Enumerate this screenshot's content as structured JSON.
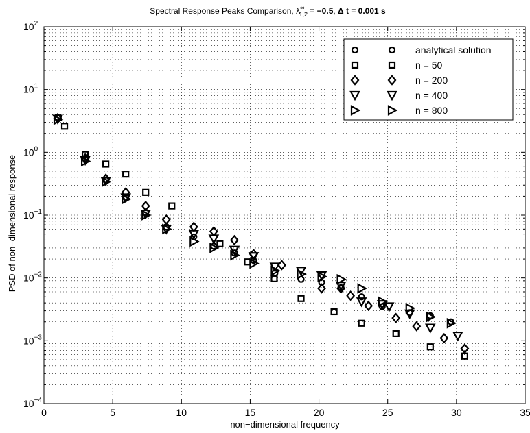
{
  "chart_data": {
    "type": "scatter",
    "title_parts": {
      "prefix": "Spectral Response Peaks Comparison, ",
      "lambda": "λ",
      "lambda_sup": "∞",
      "lambda_sub": "1,2",
      "lambda_eq": " = −0.5",
      "sep": ", ",
      "dt": "Δ t = 0.001 s"
    },
    "xlabel": "non−dimensional frequency",
    "ylabel": "PSD of non−dimensional response",
    "xlim": [
      0,
      35
    ],
    "ylim": [
      0.0001,
      100
    ],
    "yscale": "log",
    "grid": true,
    "legend_position": "top-right",
    "x_ticks": [
      "0",
      "5",
      "10",
      "15",
      "20",
      "25",
      "30",
      "35"
    ],
    "y_ticks": [
      {
        "base": "10",
        "exp": "−4"
      },
      {
        "base": "10",
        "exp": "−3"
      },
      {
        "base": "10",
        "exp": "−2"
      },
      {
        "base": "10",
        "exp": "−1"
      },
      {
        "base": "10",
        "exp": "0"
      },
      {
        "base": "10",
        "exp": "1"
      },
      {
        "base": "10",
        "exp": "2"
      }
    ],
    "series": [
      {
        "name": "analytical solution",
        "marker": "circle",
        "points": [
          [
            1.0,
            3.6
          ],
          [
            3.0,
            0.8
          ],
          [
            4.5,
            0.36
          ],
          [
            5.95,
            0.19
          ],
          [
            7.4,
            0.11
          ],
          [
            8.9,
            0.065
          ],
          [
            10.9,
            0.045
          ],
          [
            12.35,
            0.032
          ],
          [
            13.85,
            0.025
          ],
          [
            15.25,
            0.019
          ],
          [
            16.8,
            0.012
          ],
          [
            18.7,
            0.0095
          ],
          [
            20.2,
            0.0085
          ],
          [
            21.6,
            0.007
          ],
          [
            23.1,
            0.005
          ],
          [
            24.6,
            0.0035
          ],
          [
            26.6,
            0.0028
          ],
          [
            28.1,
            0.0025
          ],
          [
            29.6,
            0.002
          ]
        ]
      },
      {
        "name": "n = 50",
        "marker": "square",
        "points": [
          [
            1.5,
            2.6
          ],
          [
            3.0,
            0.92
          ],
          [
            4.5,
            0.65
          ],
          [
            5.95,
            0.45
          ],
          [
            7.4,
            0.23
          ],
          [
            9.3,
            0.14
          ],
          [
            12.8,
            0.035
          ],
          [
            14.8,
            0.018
          ],
          [
            16.75,
            0.0097
          ],
          [
            18.7,
            0.0047
          ],
          [
            21.1,
            0.0029
          ],
          [
            23.1,
            0.0019
          ],
          [
            25.6,
            0.0013
          ],
          [
            28.1,
            0.0008
          ],
          [
            30.6,
            0.00057
          ]
        ]
      },
      {
        "name": "n = 200",
        "marker": "diamond",
        "points": [
          [
            1.0,
            3.5
          ],
          [
            3.0,
            0.8
          ],
          [
            4.5,
            0.38
          ],
          [
            5.95,
            0.23
          ],
          [
            7.4,
            0.14
          ],
          [
            8.9,
            0.085
          ],
          [
            10.9,
            0.065
          ],
          [
            12.35,
            0.055
          ],
          [
            13.85,
            0.04
          ],
          [
            15.25,
            0.024
          ],
          [
            17.3,
            0.016
          ],
          [
            20.2,
            0.0068
          ],
          [
            21.6,
            0.0068
          ],
          [
            22.3,
            0.0052
          ],
          [
            23.6,
            0.0036
          ],
          [
            25.6,
            0.0023
          ],
          [
            27.1,
            0.0017
          ],
          [
            29.1,
            0.0011
          ],
          [
            30.6,
            0.00075
          ]
        ]
      },
      {
        "name": "n = 400",
        "marker": "triangle-down",
        "points": [
          [
            1.0,
            3.4
          ],
          [
            3.0,
            0.75
          ],
          [
            4.5,
            0.35
          ],
          [
            5.95,
            0.19
          ],
          [
            7.4,
            0.105
          ],
          [
            8.9,
            0.06
          ],
          [
            10.9,
            0.05
          ],
          [
            12.35,
            0.042
          ],
          [
            13.85,
            0.028
          ],
          [
            15.25,
            0.022
          ],
          [
            16.8,
            0.015
          ],
          [
            18.7,
            0.013
          ],
          [
            20.2,
            0.011
          ],
          [
            21.6,
            0.0075
          ],
          [
            23.1,
            0.0042
          ],
          [
            24.6,
            0.0038
          ],
          [
            25.1,
            0.0035
          ],
          [
            26.6,
            0.0027
          ],
          [
            28.1,
            0.0016
          ],
          [
            30.1,
            0.0012
          ]
        ]
      },
      {
        "name": "n = 800",
        "marker": "triangle-right",
        "points": [
          [
            1.0,
            3.3
          ],
          [
            3.0,
            0.72
          ],
          [
            4.5,
            0.34
          ],
          [
            5.95,
            0.18
          ],
          [
            7.4,
            0.1
          ],
          [
            8.9,
            0.06
          ],
          [
            10.9,
            0.038
          ],
          [
            12.35,
            0.03
          ],
          [
            13.85,
            0.023
          ],
          [
            15.25,
            0.017
          ],
          [
            16.8,
            0.013
          ],
          [
            18.7,
            0.0115
          ],
          [
            20.2,
            0.0105
          ],
          [
            21.6,
            0.0095
          ],
          [
            23.1,
            0.0068
          ],
          [
            24.6,
            0.0042
          ],
          [
            26.6,
            0.0033
          ],
          [
            28.1,
            0.0024
          ],
          [
            29.6,
            0.0019
          ]
        ]
      }
    ]
  }
}
